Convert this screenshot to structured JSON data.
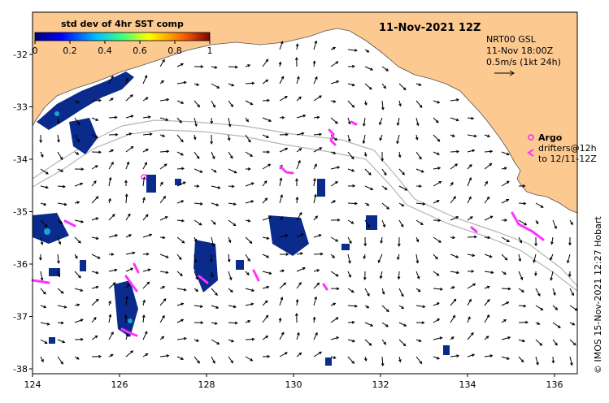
{
  "title": "11-Nov-2021 12Z",
  "colorbar": {
    "label": "std dev of 4hr SST comp",
    "ticks": [
      "0",
      "0.2",
      "0.4",
      "0.6",
      "0.8",
      "1"
    ],
    "range": [
      0,
      1
    ]
  },
  "currents_legend": {
    "line1": "NRT00 GSL",
    "line2": "11-Nov 18:00Z",
    "line3": "0.5m/s (1kt 24h)"
  },
  "argo_legend": {
    "title": "Argo",
    "line1": "drifters@12h",
    "line2": "to 12/11-12Z"
  },
  "credit": "© IMOS 15-Nov-2021 12:27 Hobart",
  "axes": {
    "x_ticks": [
      "124",
      "126",
      "128",
      "130",
      "132",
      "134",
      "136"
    ],
    "y_ticks": [
      "-32",
      "-33",
      "-34",
      "-35",
      "-36",
      "-37",
      "-38"
    ]
  },
  "colors": {
    "land": "#fcc990",
    "sst_low": "#0a2a8c",
    "argo": "#ff33ff",
    "isobath": "#b4b4b4"
  }
}
